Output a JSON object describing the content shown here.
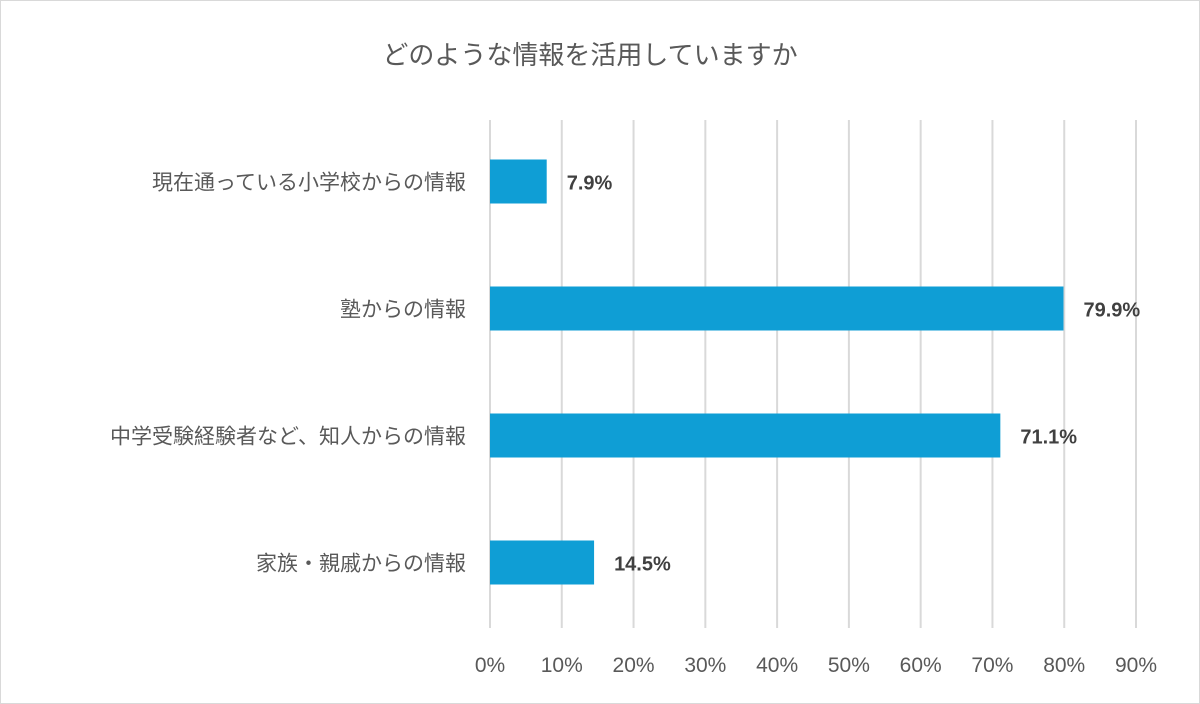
{
  "chart_data": {
    "type": "bar",
    "orientation": "horizontal",
    "title": "どのような情報を活用していますか",
    "categories": [
      "現在通っている小学校からの情報",
      "塾からの情報",
      "中学受験経験者など、知人からの情報",
      "家族・親戚からの情報"
    ],
    "values": [
      7.9,
      79.9,
      71.1,
      14.5
    ],
    "data_labels": [
      "7.9%",
      "79.9%",
      "71.1%",
      "14.5%"
    ],
    "xlim": [
      0,
      90
    ],
    "xticks": [
      0,
      10,
      20,
      30,
      40,
      50,
      60,
      70,
      80,
      90
    ],
    "xtick_labels": [
      "0%",
      "10%",
      "20%",
      "30%",
      "40%",
      "50%",
      "60%",
      "70%",
      "80%",
      "90%"
    ],
    "grid": true,
    "bar_color": "#0f9ed5",
    "xlabel": "",
    "ylabel": ""
  }
}
